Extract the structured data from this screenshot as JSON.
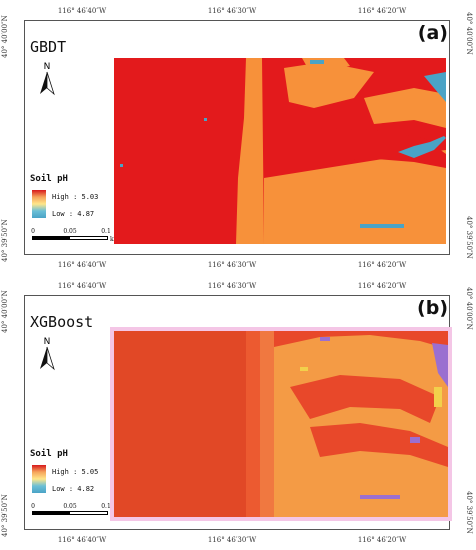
{
  "coords": {
    "top": [
      "116° 46′40″W",
      "116° 46′30″W",
      "116° 46′20″W"
    ],
    "bottom": [
      "116° 46′40″W",
      "116° 46′30″W",
      "116° 46′20″W"
    ],
    "left_a": "40° 40′00″N",
    "left_a2": "40° 39′50″N",
    "right_a": "40° 40′00″N",
    "right_a2": "40° 39′50″N",
    "left_b": "40° 40′00″N",
    "left_b2": "40° 39′50″N",
    "right_b": "40° 40′00″N",
    "right_b2": "40° 39′50″N"
  },
  "panels": [
    {
      "label": "(a)",
      "model": "GBDT",
      "north": "N",
      "legend_title": "Soil pH",
      "legend_high": "High : 5.03",
      "legend_low": "Low : 4.87",
      "scale": [
        "0",
        "0.05",
        "0.1"
      ],
      "scale_unit": "km"
    },
    {
      "label": "(b)",
      "model": "XGBoost",
      "north": "N",
      "legend_title": "Soil pH",
      "legend_high": "High : 5.05",
      "legend_low": "Low : 4.82",
      "scale": [
        "0",
        "0.05",
        "0.1"
      ],
      "scale_unit": "km"
    }
  ],
  "colors": {
    "high": "#e31a1c",
    "mid": "#f7913a",
    "low_blue": "#4aa3c6",
    "xgb_high": "#e8482a",
    "xgb_mid": "#f49b45",
    "xgb_purple": "#9b6fd0",
    "halo": "#f4c6e6"
  }
}
